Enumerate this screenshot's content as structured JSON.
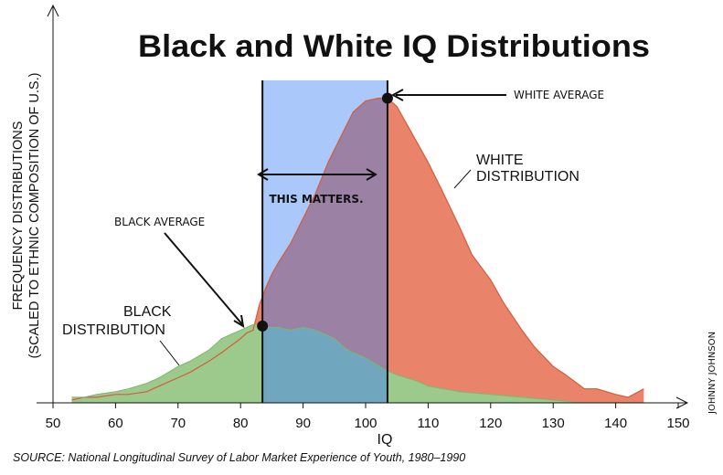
{
  "chart_data": {
    "type": "area",
    "title": "Black and White IQ Distributions",
    "xlabel": "IQ",
    "ylabel_line1": "FREQUENCY DISTRIBUTIONS",
    "ylabel_line2": "(SCALED TO ETHNIC COMPOSITION OF U.S.)",
    "xlim": [
      50,
      150
    ],
    "ylim": [
      0,
      110
    ],
    "xticks": [
      50,
      60,
      70,
      80,
      90,
      100,
      110,
      120,
      130,
      140,
      150
    ],
    "grid": false,
    "series": [
      {
        "name": "WHITE DISTRIBUTION",
        "color": "#e9846b",
        "x": [
          53,
          55,
          57,
          60,
          62,
          65,
          67,
          70,
          72,
          75,
          77,
          80,
          81,
          82,
          83,
          84,
          85,
          86,
          88,
          90,
          92,
          94,
          96,
          98,
          100,
          102,
          103.5,
          105,
          107,
          110,
          112,
          115,
          117,
          120,
          122,
          125,
          127,
          130,
          132,
          135,
          137,
          140,
          142,
          144.5
        ],
        "y": [
          1,
          2,
          2,
          3,
          3,
          4,
          6,
          9,
          11,
          15,
          18,
          23,
          25,
          26,
          35,
          41,
          46,
          50,
          57,
          66,
          75,
          86,
          95,
          104,
          108,
          109,
          109,
          106,
          98,
          86,
          77,
          63,
          53,
          44,
          36,
          26,
          20,
          13,
          10,
          5,
          5,
          3,
          2,
          5
        ]
      },
      {
        "name": "BLACK DISTRIBUTION",
        "color": "#9cc98c",
        "x": [
          53,
          55,
          57,
          60,
          62,
          65,
          67,
          70,
          72,
          75,
          77,
          80,
          82,
          83,
          84,
          86,
          88,
          90,
          92,
          95,
          97,
          100,
          103,
          105,
          108,
          110,
          115,
          120,
          125,
          130,
          135
        ],
        "y": [
          2,
          2,
          3,
          4,
          5,
          7,
          9,
          13,
          15,
          19,
          23,
          26,
          28,
          28,
          27,
          27,
          26,
          27,
          26,
          23,
          19,
          16,
          12,
          10,
          8,
          6,
          4,
          3,
          2,
          1,
          0
        ]
      }
    ],
    "annotations": {
      "black_average": {
        "label": "BLACK AVERAGE",
        "iq": 83.5
      },
      "white_average": {
        "label": "WHITE AVERAGE",
        "iq": 103.5
      },
      "span_label": "THIS MATTERS.",
      "white_label": [
        "WHITE",
        "DISTRIBUTION"
      ],
      "black_label": [
        "BLACK",
        "DISTRIBUTION"
      ]
    },
    "band_color": "#aac8f9",
    "overlap_color": "#9b81a4",
    "black_white_overlap_color": "#70a7be"
  },
  "credit": "JOHNNY JOHNSON",
  "source": "SOURCE: National Longitudinal Survey of Labor Market Experience of Youth, 1980–1990"
}
